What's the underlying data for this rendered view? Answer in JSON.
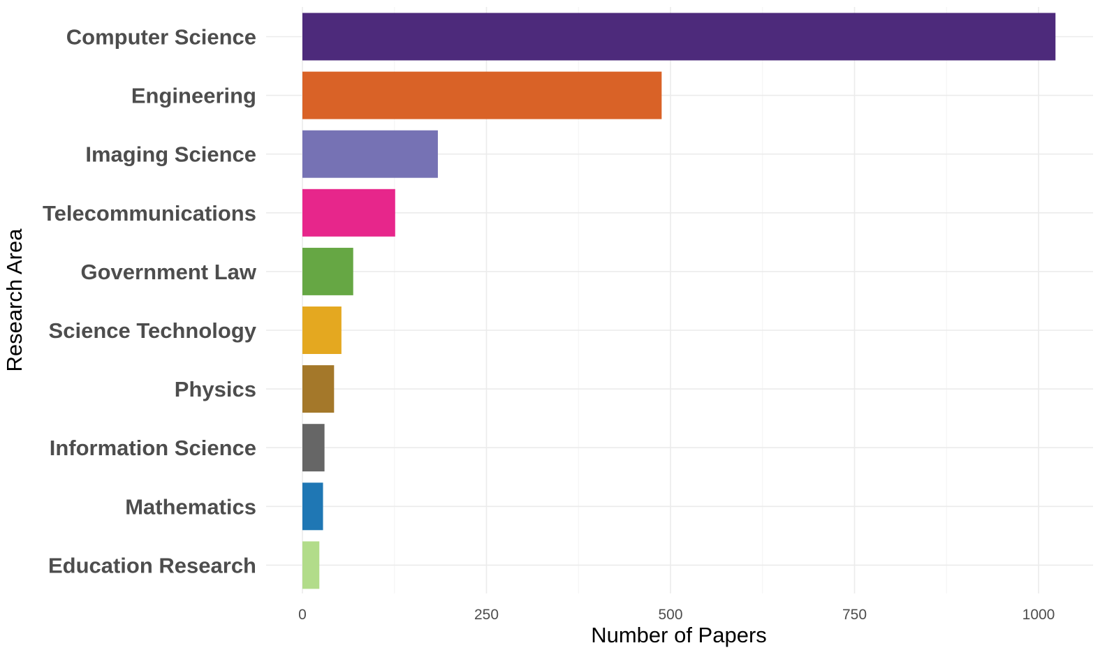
{
  "chart_data": {
    "type": "bar",
    "orientation": "horizontal",
    "xlabel": "Number of Papers",
    "ylabel": "Research Area",
    "xlim": [
      0,
      1030
    ],
    "x_ticks": [
      0,
      250,
      500,
      750,
      1000
    ],
    "grid": true,
    "legend": "none",
    "categories": [
      "Computer Science",
      "Engineering",
      "Imaging Science",
      "Telecommunications",
      "Government Law",
      "Science Technology",
      "Physics",
      "Information Science",
      "Mathematics",
      "Education Research"
    ],
    "values": [
      1023,
      488,
      184,
      126,
      69,
      53,
      43,
      30,
      28,
      23
    ],
    "colors": [
      "#4d2a7b",
      "#d96227",
      "#7672b4",
      "#e7268b",
      "#66a744",
      "#e4a820",
      "#a4782a",
      "#666666",
      "#1f77b4",
      "#b2dc8a"
    ]
  }
}
